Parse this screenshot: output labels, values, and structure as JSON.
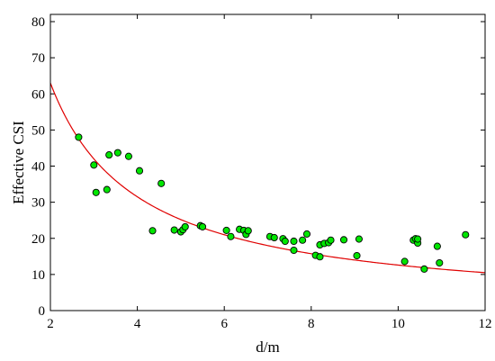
{
  "chart_data": {
    "type": "scatter",
    "title": "",
    "xlabel": "d/m",
    "ylabel": "Effective CSI",
    "xlim": [
      2,
      12
    ],
    "ylim": [
      0,
      82
    ],
    "xticks": [
      2,
      4,
      6,
      8,
      10,
      12
    ],
    "yticks": [
      0,
      10,
      20,
      30,
      40,
      50,
      60,
      70,
      80
    ],
    "grid": false,
    "legend": "none",
    "colors": {
      "points": "#00e600",
      "point_edge": "#000000",
      "fit": "#e00000"
    },
    "points": [
      [
        2.65,
        48.0
      ],
      [
        3.0,
        40.3
      ],
      [
        3.05,
        32.7
      ],
      [
        3.3,
        33.5
      ],
      [
        3.35,
        43.1
      ],
      [
        3.55,
        43.7
      ],
      [
        3.8,
        42.7
      ],
      [
        4.05,
        38.7
      ],
      [
        4.35,
        22.1
      ],
      [
        4.55,
        35.2
      ],
      [
        4.85,
        22.3
      ],
      [
        5.0,
        21.8
      ],
      [
        5.05,
        22.4
      ],
      [
        5.1,
        23.2
      ],
      [
        5.45,
        23.5
      ],
      [
        5.5,
        23.2
      ],
      [
        6.05,
        22.2
      ],
      [
        6.15,
        20.5
      ],
      [
        6.35,
        22.5
      ],
      [
        6.45,
        22.2
      ],
      [
        6.5,
        21.1
      ],
      [
        6.55,
        22.1
      ],
      [
        7.05,
        20.5
      ],
      [
        7.15,
        20.2
      ],
      [
        7.35,
        19.9
      ],
      [
        7.4,
        19.2
      ],
      [
        7.6,
        16.7
      ],
      [
        7.6,
        19.2
      ],
      [
        7.8,
        19.5
      ],
      [
        7.9,
        21.2
      ],
      [
        8.1,
        15.3
      ],
      [
        8.2,
        14.9
      ],
      [
        8.2,
        18.2
      ],
      [
        8.3,
        18.6
      ],
      [
        8.4,
        18.8
      ],
      [
        8.45,
        19.5
      ],
      [
        8.75,
        19.6
      ],
      [
        9.05,
        15.2
      ],
      [
        9.1,
        19.8
      ],
      [
        10.15,
        13.6
      ],
      [
        10.35,
        19.5
      ],
      [
        10.4,
        19.9
      ],
      [
        10.45,
        18.7
      ],
      [
        10.45,
        19.8
      ],
      [
        10.6,
        11.5
      ],
      [
        10.9,
        17.8
      ],
      [
        10.95,
        13.2
      ],
      [
        11.55,
        21.0
      ]
    ],
    "fit": {
      "type": "line",
      "model": "y = a / x",
      "a": 126
    }
  }
}
